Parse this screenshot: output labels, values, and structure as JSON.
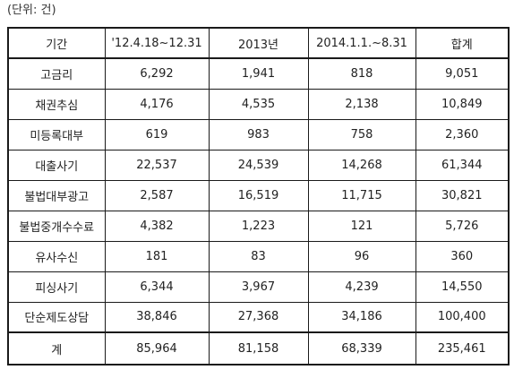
{
  "unit_note": "(단위: 건)",
  "table": {
    "headers": [
      "기간",
      "'12.4.18~12.31",
      "2013년",
      "2014.1.1.~8.31",
      "합계"
    ],
    "rows": [
      {
        "label": "고금리",
        "values": [
          "6,292",
          "1,941",
          "818",
          "9,051"
        ]
      },
      {
        "label": "채권추심",
        "values": [
          "4,176",
          "4,535",
          "2,138",
          "10,849"
        ]
      },
      {
        "label": "미등록대부",
        "values": [
          "619",
          "983",
          "758",
          "2,360"
        ]
      },
      {
        "label": "대출사기",
        "values": [
          "22,537",
          "24,539",
          "14,268",
          "61,344"
        ]
      },
      {
        "label": "불법대부광고",
        "values": [
          "2,587",
          "16,519",
          "11,715",
          "30,821"
        ]
      },
      {
        "label": "불법중개수수료",
        "values": [
          "4,382",
          "1,223",
          "121",
          "5,726"
        ]
      },
      {
        "label": "유사수신",
        "values": [
          "181",
          "83",
          "96",
          "360"
        ]
      },
      {
        "label": "피싱사기",
        "values": [
          "6,344",
          "3,967",
          "4,239",
          "14,550"
        ]
      },
      {
        "label": "단순제도상담",
        "values": [
          "38,846",
          "27,368",
          "34,186",
          "100,400"
        ]
      }
    ],
    "total": {
      "label": "계",
      "values": [
        "85,964",
        "81,158",
        "68,339",
        "235,461"
      ]
    }
  }
}
